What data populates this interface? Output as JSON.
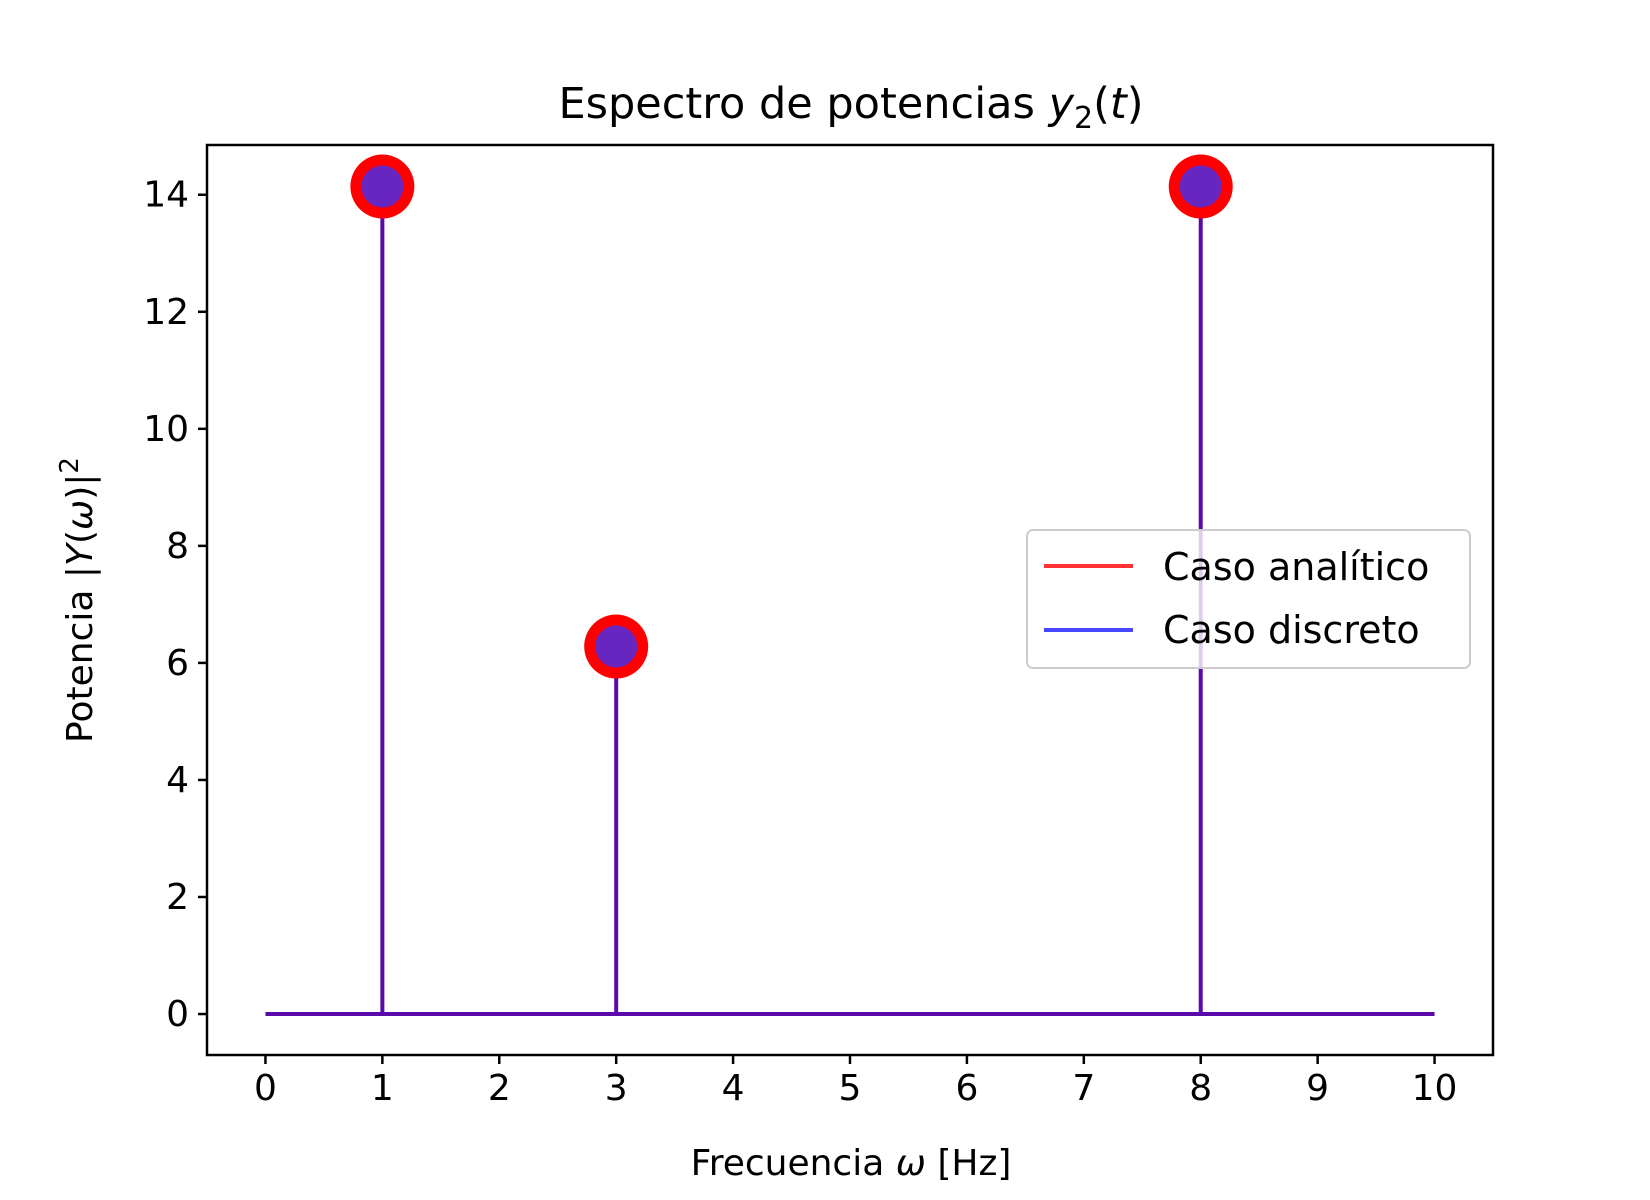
{
  "chart_data": {
    "type": "stem",
    "title": {
      "prefix": "Espectro de potencias ",
      "var": "y",
      "sub": "2",
      "open": "(",
      "arg": "t",
      "close": ")"
    },
    "xlabel": {
      "prefix": "Frecuencia ",
      "var": "ω",
      "suffix": " [Hz]"
    },
    "ylabel": {
      "prefix": "Potencia |",
      "var1": "Y",
      "open": "(",
      "var2": "ω",
      "close": ")|",
      "sup": "2"
    },
    "xlim": [
      -0.5,
      10.5
    ],
    "ylim": [
      -0.7,
      14.85
    ],
    "xticks": [
      "0",
      "1",
      "2",
      "3",
      "4",
      "5",
      "6",
      "7",
      "8",
      "9",
      "10"
    ],
    "yticks": [
      "0",
      "2",
      "4",
      "6",
      "8",
      "10",
      "12",
      "14"
    ],
    "baseline": {
      "from": 0,
      "to": 10,
      "y": 0
    },
    "series": [
      {
        "name": "Caso analítico",
        "color": "#ff0000",
        "x": [
          1,
          3,
          8
        ],
        "y": [
          14.14,
          6.28,
          14.14
        ]
      },
      {
        "name": "Caso discreto",
        "color": "#3333ff",
        "x": [
          1,
          3,
          8
        ],
        "y": [
          14.14,
          6.28,
          14.14
        ]
      }
    ],
    "legend_position": "center-right",
    "stem_color": "#5a0aa8",
    "grid": false
  }
}
